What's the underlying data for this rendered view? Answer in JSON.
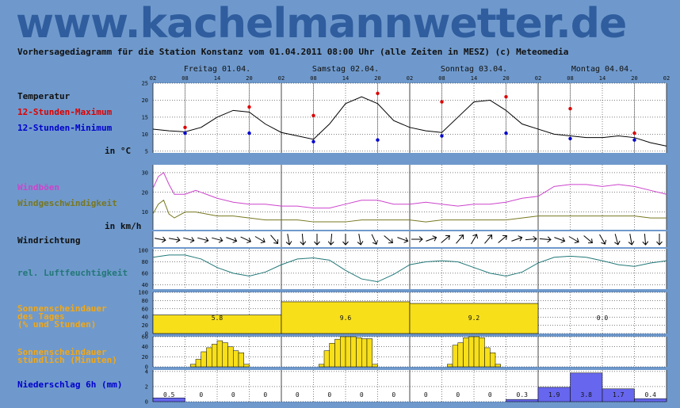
{
  "site": {
    "title": "www.kachelmannwetter.de"
  },
  "header": {
    "subtitle": "Vorhersagediagramm für die Station Konstanz vom 01.04.2011 08:00 Uhr (alle Zeiten in MESZ)   (c) Meteomedia"
  },
  "colors": {
    "background": "#6f99cc",
    "max_temp": "#dd0000",
    "min_temp": "#0000cc",
    "gusts": "#cc44cc",
    "wind": "#777722",
    "humidity": "#227777",
    "sun": "#f7df1a",
    "precip": "#6666ee",
    "sun_label": "#f2a818"
  },
  "days": [
    "Freitag 01.04.",
    "Samstag 02.04.",
    "Sonntag 03.04.",
    "Montag 04.04."
  ],
  "hour_ticks": [
    "02",
    "08",
    "14",
    "20",
    "02",
    "08",
    "14",
    "20",
    "02",
    "08",
    "14",
    "20",
    "02",
    "08",
    "14",
    "20",
    "02"
  ],
  "labels": {
    "temperature": "Temperatur",
    "max": "12-Stunden-Maximum",
    "min": "12-Stunden-Minimum",
    "temp_unit": "in °C",
    "gusts": "Windböen",
    "wind": "Windgeschwindigkeit",
    "wind_unit": "in km/h",
    "wind_dir": "Windrichtung",
    "humidity": "rel. Luftfeuchtigkeit",
    "sun_day_1": "Sonnenscheindauer",
    "sun_day_2": "des Tages",
    "sun_day_3": "(% und Stunden)",
    "sun_hour_1": "Sonnenscheindauer",
    "sun_hour_2": "stündlich (Minuten)",
    "precip": "Niederschlag 6h (mm)"
  },
  "chart_data": [
    {
      "type": "line",
      "name": "temperature",
      "x_hours": [
        0,
        3,
        6,
        9,
        12,
        15,
        18,
        21,
        24,
        27,
        30,
        33,
        36,
        39,
        42,
        45,
        48,
        51,
        54,
        57,
        60,
        63,
        66,
        69,
        72,
        75,
        78,
        81,
        84,
        87,
        90,
        93,
        96
      ],
      "values": [
        11.5,
        11,
        10.7,
        12,
        15,
        17,
        16.5,
        13,
        10.5,
        9.5,
        8.5,
        13,
        19,
        21,
        19,
        14,
        12,
        11,
        10.5,
        15,
        19.5,
        20,
        17,
        13,
        11.5,
        10,
        9.5,
        9,
        9,
        9.5,
        9,
        7.5,
        6.5
      ],
      "max_points": [
        [
          6,
          12
        ],
        [
          18,
          18
        ],
        [
          30,
          15.5
        ],
        [
          42,
          22
        ],
        [
          54,
          19.5
        ],
        [
          66,
          21
        ],
        [
          78,
          17.5
        ],
        [
          90,
          10.3
        ]
      ],
      "min_points": [
        [
          6,
          10.3
        ],
        [
          18,
          10.3
        ],
        [
          30,
          7.8
        ],
        [
          42,
          8.3
        ],
        [
          54,
          9.5
        ],
        [
          66,
          10.3
        ],
        [
          78,
          8.7
        ],
        [
          90,
          8.3
        ]
      ],
      "yticks": [
        5,
        10,
        15,
        20,
        25
      ],
      "ylim": [
        4.5,
        25
      ]
    },
    {
      "type": "line",
      "name": "wind",
      "x_hours": [
        0,
        1,
        2,
        3,
        4,
        6,
        8,
        10,
        12,
        15,
        18,
        21,
        24,
        27,
        30,
        33,
        36,
        39,
        42,
        45,
        48,
        51,
        54,
        57,
        60,
        63,
        66,
        69,
        72,
        75,
        78,
        81,
        84,
        87,
        90,
        93,
        96
      ],
      "gusts": [
        22,
        28,
        30,
        24,
        19,
        19,
        21,
        19,
        17,
        15,
        14,
        14,
        13,
        13,
        12,
        12,
        14,
        16,
        16,
        14,
        14,
        15,
        14,
        13,
        14,
        14,
        15,
        17,
        18,
        23,
        24,
        24,
        23,
        24,
        23,
        21,
        19
      ],
      "wind": [
        9,
        14,
        16,
        9,
        7,
        10,
        10,
        9,
        8,
        8,
        7,
        6,
        6,
        6,
        5,
        5,
        5,
        6,
        6,
        6,
        6,
        5,
        6,
        6,
        6,
        6,
        6,
        7,
        8,
        8,
        8,
        8,
        8,
        8,
        8,
        7,
        7
      ],
      "yticks": [
        10,
        20,
        30
      ],
      "ylim": [
        1,
        34
      ]
    },
    {
      "type": "table",
      "name": "wind_direction",
      "angles": [
        10,
        10,
        15,
        15,
        15,
        20,
        25,
        30,
        50,
        80,
        85,
        90,
        95,
        90,
        80,
        65,
        40,
        20,
        0,
        340,
        320,
        310,
        300,
        310,
        320,
        340,
        355,
        5,
        20,
        30,
        40,
        60,
        75,
        80,
        85,
        90
      ]
    },
    {
      "type": "line",
      "name": "humidity",
      "x_hours": [
        0,
        3,
        6,
        9,
        12,
        15,
        18,
        21,
        24,
        27,
        30,
        33,
        36,
        39,
        42,
        45,
        48,
        51,
        54,
        57,
        60,
        63,
        66,
        69,
        72,
        75,
        78,
        81,
        84,
        87,
        90,
        93,
        96
      ],
      "values": [
        88,
        92,
        92,
        85,
        70,
        60,
        55,
        62,
        75,
        85,
        87,
        83,
        65,
        50,
        45,
        58,
        75,
        80,
        82,
        80,
        70,
        60,
        55,
        62,
        78,
        88,
        90,
        88,
        82,
        75,
        72,
        78,
        82
      ],
      "yticks": [
        40,
        60,
        80,
        100
      ],
      "ylim": [
        32,
        103
      ]
    },
    {
      "type": "bar",
      "name": "sun_day",
      "categories": [
        "01.04.",
        "02.04.",
        "03.04.",
        "04.04."
      ],
      "percent": [
        45,
        77,
        73,
        0
      ],
      "labels": [
        "5.8",
        "9.6",
        "9.2",
        "0.0"
      ],
      "yticks": [
        0,
        20,
        40,
        60,
        80,
        100
      ],
      "ylim": [
        0,
        100
      ]
    },
    {
      "type": "bar",
      "name": "sun_hour",
      "day_start_hour": 7,
      "minutes": [
        [
          5,
          15,
          30,
          38,
          45,
          52,
          48,
          40,
          32,
          28,
          5,
          0,
          0
        ],
        [
          5,
          32,
          47,
          55,
          60,
          60,
          60,
          58,
          56,
          56,
          5,
          0,
          0
        ],
        [
          5,
          43,
          48,
          58,
          60,
          60,
          58,
          38,
          28,
          5,
          0,
          0,
          0
        ],
        [
          0,
          0,
          0,
          0,
          0,
          0,
          0,
          0,
          0,
          0,
          0,
          0,
          0
        ]
      ],
      "yticks": [
        0,
        20,
        40,
        60
      ],
      "ylim": [
        0,
        60
      ]
    },
    {
      "type": "bar",
      "name": "precipitation",
      "x_hours": [
        0,
        6,
        12,
        18,
        24,
        30,
        36,
        42,
        48,
        54,
        60,
        66,
        72,
        78,
        84,
        90
      ],
      "values": [
        0.5,
        0,
        0,
        0,
        0,
        0,
        0,
        0,
        0,
        0,
        0,
        0.3,
        1.9,
        3.8,
        1.7,
        0.4
      ],
      "labels": [
        "0.5",
        "0",
        "0",
        "0",
        "0",
        "0",
        "0",
        "0",
        "0",
        "0",
        "0",
        "0.3",
        "1.9",
        "3.8",
        "1.7",
        "0.4"
      ],
      "yticks": [
        0,
        2,
        4
      ],
      "ylim": [
        0,
        4.2
      ]
    }
  ]
}
